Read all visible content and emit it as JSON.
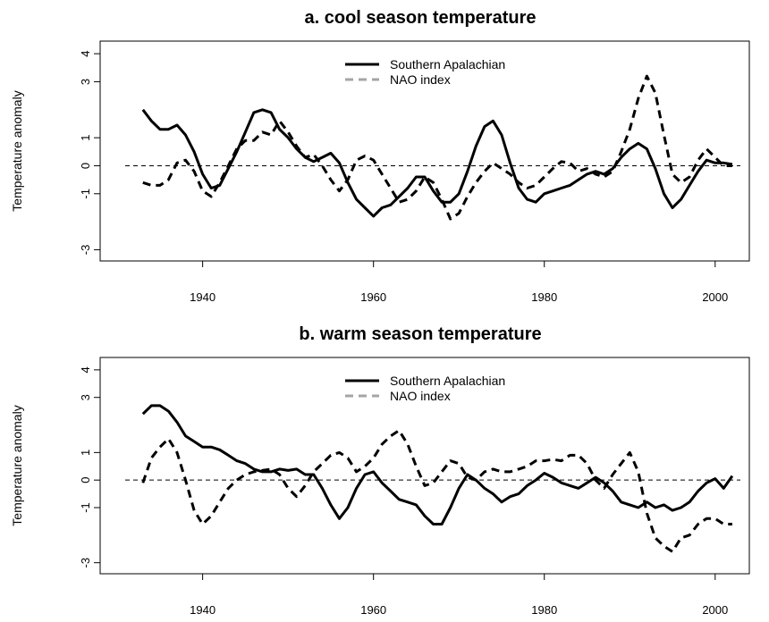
{
  "chart_data": [
    {
      "type": "line",
      "title": "a. cool season temperature",
      "ylabel": "Temperature anomaly",
      "x": [
        1933,
        1934,
        1935,
        1936,
        1937,
        1938,
        1939,
        1940,
        1941,
        1942,
        1943,
        1944,
        1945,
        1946,
        1947,
        1948,
        1949,
        1950,
        1951,
        1952,
        1953,
        1954,
        1955,
        1956,
        1957,
        1958,
        1959,
        1960,
        1961,
        1962,
        1963,
        1964,
        1965,
        1966,
        1967,
        1968,
        1969,
        1970,
        1971,
        1972,
        1973,
        1974,
        1975,
        1976,
        1977,
        1978,
        1979,
        1980,
        1981,
        1982,
        1983,
        1984,
        1985,
        1986,
        1987,
        1988,
        1989,
        1990,
        1991,
        1992,
        1993,
        1994,
        1995,
        1996,
        1997,
        1998,
        1999,
        2000,
        2001,
        2002
      ],
      "series": [
        {
          "name": "Southern Apalachian",
          "color": "#000000",
          "dash": false,
          "values": [
            2.0,
            1.6,
            1.3,
            1.3,
            1.45,
            1.1,
            0.5,
            -0.3,
            -0.8,
            -0.7,
            -0.1,
            0.5,
            1.2,
            1.9,
            2.0,
            1.9,
            1.3,
            1.0,
            0.6,
            0.3,
            0.15,
            0.3,
            0.45,
            0.1,
            -0.6,
            -1.2,
            -1.5,
            -1.8,
            -1.5,
            -1.4,
            -1.1,
            -0.8,
            -0.4,
            -0.4,
            -0.9,
            -1.3,
            -1.3,
            -1.0,
            -0.2,
            0.7,
            1.4,
            1.6,
            1.1,
            0.1,
            -0.8,
            -1.2,
            -1.3,
            -1.0,
            -0.9,
            -0.8,
            -0.7,
            -0.5,
            -0.3,
            -0.2,
            -0.3,
            -0.1,
            0.3,
            0.6,
            0.8,
            0.6,
            -0.1,
            -1.0,
            -1.5,
            -1.2,
            -0.7,
            -0.2,
            0.2,
            0.1,
            0.1,
            0.05
          ]
        },
        {
          "name": "NAO index",
          "color": "#000000",
          "dash": true,
          "values": [
            -0.6,
            -0.7,
            -0.7,
            -0.5,
            0.1,
            0.2,
            -0.2,
            -0.9,
            -1.1,
            -0.6,
            0.0,
            0.6,
            0.9,
            0.9,
            1.2,
            1.1,
            1.6,
            1.2,
            0.7,
            0.3,
            0.4,
            0.0,
            -0.5,
            -0.9,
            -0.5,
            0.2,
            0.35,
            0.2,
            -0.3,
            -0.8,
            -1.3,
            -1.2,
            -0.9,
            -0.4,
            -0.6,
            -1.2,
            -1.9,
            -1.7,
            -1.1,
            -0.6,
            -0.2,
            0.1,
            -0.1,
            -0.3,
            -0.6,
            -0.8,
            -0.7,
            -0.4,
            -0.1,
            0.15,
            0.1,
            -0.2,
            -0.1,
            -0.3,
            -0.4,
            -0.2,
            0.5,
            1.3,
            2.4,
            3.2,
            2.6,
            1.1,
            -0.3,
            -0.6,
            -0.4,
            0.2,
            0.6,
            0.3,
            0.0,
            0.0
          ]
        }
      ],
      "xlim": [
        1928,
        2004
      ],
      "xticks": [
        1940,
        1960,
        1980,
        2000
      ],
      "ylim": [
        -3.4,
        4.45
      ],
      "yticks": [
        -3,
        -1,
        0,
        1,
        3,
        4
      ],
      "hline": 0,
      "legend": "top"
    },
    {
      "type": "line",
      "title": "b. warm season temperature",
      "ylabel": "Temperature anomaly",
      "x": [
        1933,
        1934,
        1935,
        1936,
        1937,
        1938,
        1939,
        1940,
        1941,
        1942,
        1943,
        1944,
        1945,
        1946,
        1947,
        1948,
        1949,
        1950,
        1951,
        1952,
        1953,
        1954,
        1955,
        1956,
        1957,
        1958,
        1959,
        1960,
        1961,
        1962,
        1963,
        1964,
        1965,
        1966,
        1967,
        1968,
        1969,
        1970,
        1971,
        1972,
        1973,
        1974,
        1975,
        1976,
        1977,
        1978,
        1979,
        1980,
        1981,
        1982,
        1983,
        1984,
        1985,
        1986,
        1987,
        1988,
        1989,
        1990,
        1991,
        1992,
        1993,
        1994,
        1995,
        1996,
        1997,
        1998,
        1999,
        2000,
        2001,
        2002
      ],
      "series": [
        {
          "name": "Southern Apalachian",
          "color": "#000000",
          "dash": false,
          "values": [
            2.4,
            2.7,
            2.7,
            2.5,
            2.1,
            1.6,
            1.4,
            1.2,
            1.2,
            1.1,
            0.9,
            0.7,
            0.6,
            0.4,
            0.3,
            0.3,
            0.4,
            0.35,
            0.4,
            0.2,
            0.2,
            -0.3,
            -0.9,
            -1.4,
            -1.0,
            -0.3,
            0.2,
            0.3,
            -0.1,
            -0.4,
            -0.7,
            -0.8,
            -0.9,
            -1.3,
            -1.6,
            -1.6,
            -1.0,
            -0.3,
            0.2,
            0.0,
            -0.3,
            -0.5,
            -0.8,
            -0.6,
            -0.5,
            -0.2,
            0.0,
            0.25,
            0.1,
            -0.1,
            -0.2,
            -0.3,
            -0.1,
            0.1,
            -0.1,
            -0.4,
            -0.8,
            -0.9,
            -1.0,
            -0.8,
            -1.0,
            -0.9,
            -1.1,
            -1.0,
            -0.8,
            -0.4,
            -0.1,
            0.05,
            -0.3,
            0.15
          ]
        },
        {
          "name": "NAO index",
          "color": "#000000",
          "dash": true,
          "values": [
            -0.1,
            0.8,
            1.2,
            1.5,
            1.0,
            0.0,
            -1.1,
            -1.6,
            -1.3,
            -0.8,
            -0.3,
            0.0,
            0.2,
            0.3,
            0.35,
            0.4,
            0.2,
            -0.3,
            -0.6,
            -0.2,
            0.3,
            0.6,
            0.9,
            1.0,
            0.8,
            0.3,
            0.5,
            0.8,
            1.3,
            1.6,
            1.8,
            1.3,
            0.5,
            -0.2,
            -0.1,
            0.3,
            0.7,
            0.6,
            0.1,
            0.0,
            0.3,
            0.4,
            0.3,
            0.3,
            0.4,
            0.5,
            0.7,
            0.7,
            0.75,
            0.7,
            0.9,
            0.9,
            0.6,
            0.0,
            -0.3,
            0.2,
            0.6,
            1.0,
            0.3,
            -1.2,
            -2.1,
            -2.4,
            -2.6,
            -2.1,
            -2.0,
            -1.6,
            -1.4,
            -1.4,
            -1.6,
            -1.6
          ]
        }
      ],
      "xlim": [
        1928,
        2004
      ],
      "xticks": [
        1940,
        1960,
        1980,
        2000
      ],
      "ylim": [
        -3.4,
        4.45
      ],
      "yticks": [
        -3,
        -1,
        0,
        1,
        3,
        4
      ],
      "hline": 0,
      "legend": "top"
    }
  ]
}
